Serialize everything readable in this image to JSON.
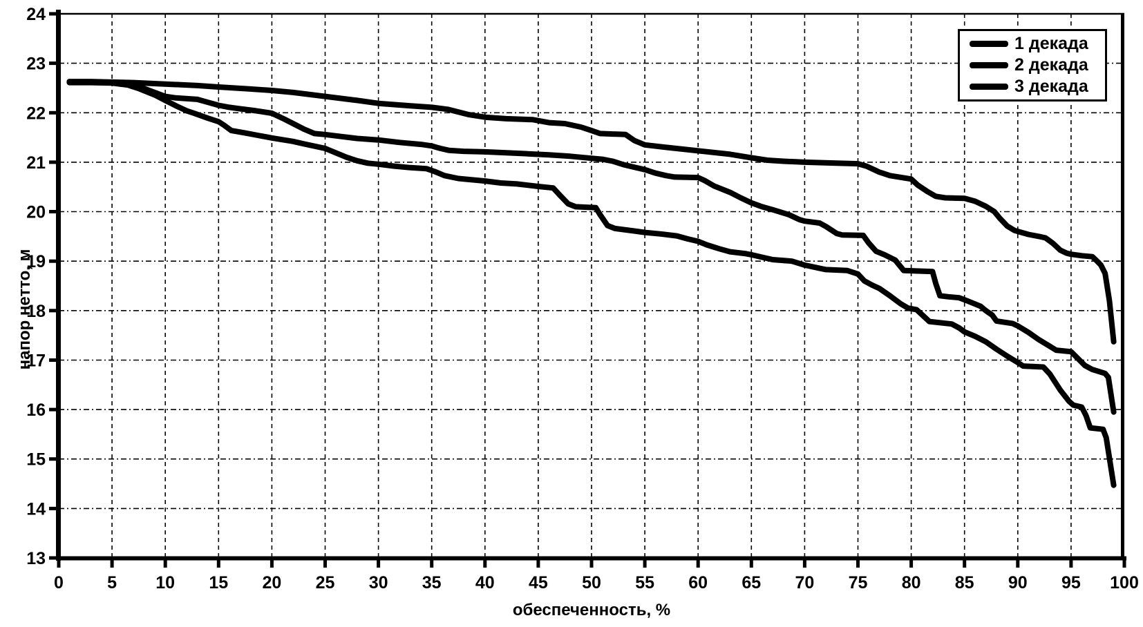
{
  "chart_data": {
    "type": "line",
    "title": "",
    "xlabel": "обеспеченность, %",
    "ylabel": "напор нетто, м",
    "xlim": [
      0,
      100
    ],
    "ylim": [
      13,
      24
    ],
    "x_ticks": [
      0,
      5,
      10,
      15,
      20,
      25,
      30,
      35,
      40,
      45,
      50,
      55,
      60,
      65,
      70,
      75,
      80,
      85,
      90,
      95,
      100
    ],
    "y_ticks": [
      13,
      14,
      15,
      16,
      17,
      18,
      19,
      20,
      21,
      22,
      23,
      24
    ],
    "grid": true,
    "legend_position": "top-right",
    "line_color": "#000000",
    "axis_color": "#000000",
    "background_color": "#ffffff",
    "line_width": 8,
    "series": [
      {
        "name": "1 декада",
        "points": [
          [
            1,
            22.63
          ],
          [
            3,
            22.63
          ],
          [
            5,
            22.62
          ],
          [
            7,
            22.61
          ],
          [
            10,
            22.58
          ],
          [
            13,
            22.55
          ],
          [
            15,
            22.52
          ],
          [
            18,
            22.48
          ],
          [
            20,
            22.45
          ],
          [
            22,
            22.41
          ],
          [
            25,
            22.33
          ],
          [
            28,
            22.25
          ],
          [
            30,
            22.19
          ],
          [
            33,
            22.14
          ],
          [
            35,
            22.11
          ],
          [
            36.5,
            22.07
          ],
          [
            38.5,
            21.96
          ],
          [
            40,
            21.91
          ],
          [
            42,
            21.88
          ],
          [
            44.5,
            21.86
          ],
          [
            46,
            21.8
          ],
          [
            47.5,
            21.78
          ],
          [
            49,
            21.71
          ],
          [
            50,
            21.64
          ],
          [
            50.8,
            21.58
          ],
          [
            53.2,
            21.56
          ],
          [
            54,
            21.44
          ],
          [
            55,
            21.35
          ],
          [
            57,
            21.3
          ],
          [
            60,
            21.23
          ],
          [
            63,
            21.16
          ],
          [
            65,
            21.09
          ],
          [
            66.5,
            21.04
          ],
          [
            68,
            21.02
          ],
          [
            70,
            21.0
          ],
          [
            73,
            20.98
          ],
          [
            75,
            20.97
          ],
          [
            75.8,
            20.92
          ],
          [
            77,
            20.8
          ],
          [
            78,
            20.73
          ],
          [
            80,
            20.66
          ],
          [
            80.6,
            20.54
          ],
          [
            81.5,
            20.41
          ],
          [
            82.3,
            20.31
          ],
          [
            83.2,
            20.28
          ],
          [
            85,
            20.27
          ],
          [
            86,
            20.21
          ],
          [
            87,
            20.11
          ],
          [
            87.8,
            20.0
          ],
          [
            88.3,
            19.87
          ],
          [
            89,
            19.71
          ],
          [
            89.7,
            19.62
          ],
          [
            91,
            19.54
          ],
          [
            92,
            19.5
          ],
          [
            92.6,
            19.47
          ],
          [
            93.3,
            19.36
          ],
          [
            94,
            19.22
          ],
          [
            94.6,
            19.16
          ],
          [
            95,
            19.14
          ],
          [
            96,
            19.11
          ],
          [
            97,
            19.09
          ],
          [
            97.4,
            19.01
          ],
          [
            97.8,
            18.92
          ],
          [
            98.2,
            18.75
          ],
          [
            98.6,
            18.2
          ],
          [
            99,
            17.37
          ]
        ]
      },
      {
        "name": "2 декада",
        "points": [
          [
            1,
            22.62
          ],
          [
            3,
            22.62
          ],
          [
            5,
            22.61
          ],
          [
            6.5,
            22.59
          ],
          [
            7.5,
            22.53
          ],
          [
            8.5,
            22.45
          ],
          [
            10,
            22.33
          ],
          [
            11,
            22.3
          ],
          [
            13,
            22.27
          ],
          [
            14,
            22.21
          ],
          [
            15,
            22.15
          ],
          [
            16,
            22.11
          ],
          [
            17,
            22.08
          ],
          [
            18.5,
            22.04
          ],
          [
            20,
            21.99
          ],
          [
            21,
            21.89
          ],
          [
            22,
            21.78
          ],
          [
            23,
            21.67
          ],
          [
            24,
            21.58
          ],
          [
            25,
            21.56
          ],
          [
            26.5,
            21.52
          ],
          [
            28,
            21.48
          ],
          [
            30,
            21.45
          ],
          [
            32,
            21.4
          ],
          [
            34,
            21.36
          ],
          [
            35,
            21.33
          ],
          [
            35.8,
            21.28
          ],
          [
            36.6,
            21.24
          ],
          [
            38,
            21.22
          ],
          [
            40,
            21.21
          ],
          [
            42,
            21.19
          ],
          [
            44,
            21.17
          ],
          [
            46,
            21.15
          ],
          [
            48,
            21.12
          ],
          [
            50,
            21.08
          ],
          [
            51,
            21.06
          ],
          [
            52,
            21.02
          ],
          [
            53,
            20.95
          ],
          [
            54,
            20.9
          ],
          [
            55,
            20.85
          ],
          [
            56,
            20.78
          ],
          [
            57,
            20.73
          ],
          [
            57.8,
            20.7
          ],
          [
            60,
            20.69
          ],
          [
            60.6,
            20.63
          ],
          [
            61.5,
            20.52
          ],
          [
            63,
            20.39
          ],
          [
            64,
            20.28
          ],
          [
            65,
            20.18
          ],
          [
            66,
            20.1
          ],
          [
            67,
            20.04
          ],
          [
            68.5,
            19.94
          ],
          [
            69.5,
            19.84
          ],
          [
            70,
            19.81
          ],
          [
            71.4,
            19.77
          ],
          [
            72,
            19.7
          ],
          [
            73,
            19.56
          ],
          [
            73.5,
            19.53
          ],
          [
            75.5,
            19.52
          ],
          [
            76,
            19.37
          ],
          [
            76.7,
            19.2
          ],
          [
            77.5,
            19.13
          ],
          [
            78.5,
            19.02
          ],
          [
            79.3,
            18.81
          ],
          [
            82,
            18.79
          ],
          [
            82.3,
            18.55
          ],
          [
            82.7,
            18.3
          ],
          [
            83.5,
            18.28
          ],
          [
            84.5,
            18.26
          ],
          [
            85,
            18.22
          ],
          [
            86.5,
            18.09
          ],
          [
            87,
            18.0
          ],
          [
            87.6,
            17.91
          ],
          [
            88,
            17.79
          ],
          [
            89.5,
            17.74
          ],
          [
            90,
            17.69
          ],
          [
            91,
            17.56
          ],
          [
            92,
            17.41
          ],
          [
            93,
            17.28
          ],
          [
            93.6,
            17.2
          ],
          [
            95,
            17.17
          ],
          [
            95.6,
            17.04
          ],
          [
            96.3,
            16.89
          ],
          [
            97,
            16.81
          ],
          [
            98.2,
            16.73
          ],
          [
            98.5,
            16.65
          ],
          [
            99,
            15.95
          ]
        ]
      },
      {
        "name": "3 декада",
        "points": [
          [
            1,
            22.61
          ],
          [
            3,
            22.61
          ],
          [
            5,
            22.6
          ],
          [
            6.5,
            22.56
          ],
          [
            7.5,
            22.49
          ],
          [
            9,
            22.36
          ],
          [
            10,
            22.25
          ],
          [
            11,
            22.14
          ],
          [
            12,
            22.04
          ],
          [
            12.7,
            21.99
          ],
          [
            14,
            21.89
          ],
          [
            15,
            21.82
          ],
          [
            15.5,
            21.75
          ],
          [
            16.2,
            21.64
          ],
          [
            17.5,
            21.59
          ],
          [
            18.5,
            21.55
          ],
          [
            20,
            21.49
          ],
          [
            22,
            21.42
          ],
          [
            23,
            21.37
          ],
          [
            25,
            21.28
          ],
          [
            26,
            21.19
          ],
          [
            27,
            21.1
          ],
          [
            28,
            21.03
          ],
          [
            29,
            20.98
          ],
          [
            30,
            20.96
          ],
          [
            31.5,
            20.92
          ],
          [
            33,
            20.89
          ],
          [
            34.5,
            20.87
          ],
          [
            35.3,
            20.81
          ],
          [
            36.2,
            20.73
          ],
          [
            37.5,
            20.67
          ],
          [
            40,
            20.62
          ],
          [
            41.5,
            20.58
          ],
          [
            43,
            20.56
          ],
          [
            45,
            20.51
          ],
          [
            46.4,
            20.48
          ],
          [
            47,
            20.34
          ],
          [
            47.8,
            20.16
          ],
          [
            48.5,
            20.1
          ],
          [
            50.4,
            20.08
          ],
          [
            50.8,
            19.94
          ],
          [
            51.5,
            19.72
          ],
          [
            52.2,
            19.66
          ],
          [
            54,
            19.61
          ],
          [
            55,
            19.58
          ],
          [
            56.5,
            19.55
          ],
          [
            58,
            19.51
          ],
          [
            59,
            19.45
          ],
          [
            60,
            19.4
          ],
          [
            60.8,
            19.33
          ],
          [
            62,
            19.25
          ],
          [
            63,
            19.19
          ],
          [
            64.5,
            19.15
          ],
          [
            65,
            19.13
          ],
          [
            66,
            19.08
          ],
          [
            67,
            19.03
          ],
          [
            68.8,
            19.0
          ],
          [
            70,
            18.92
          ],
          [
            71.3,
            18.86
          ],
          [
            72,
            18.83
          ],
          [
            74,
            18.81
          ],
          [
            75,
            18.74
          ],
          [
            75.6,
            18.6
          ],
          [
            76.3,
            18.52
          ],
          [
            77,
            18.45
          ],
          [
            78,
            18.3
          ],
          [
            79,
            18.14
          ],
          [
            79.7,
            18.05
          ],
          [
            80.5,
            18.02
          ],
          [
            81,
            17.92
          ],
          [
            81.7,
            17.78
          ],
          [
            83.8,
            17.73
          ],
          [
            84.5,
            17.65
          ],
          [
            85,
            17.57
          ],
          [
            86,
            17.48
          ],
          [
            87,
            17.37
          ],
          [
            88,
            17.22
          ],
          [
            89,
            17.08
          ],
          [
            90,
            16.95
          ],
          [
            90.5,
            16.88
          ],
          [
            92.4,
            16.86
          ],
          [
            93,
            16.72
          ],
          [
            94,
            16.39
          ],
          [
            94.8,
            16.17
          ],
          [
            95.2,
            16.09
          ],
          [
            96,
            16.05
          ],
          [
            96.4,
            15.88
          ],
          [
            96.8,
            15.63
          ],
          [
            98,
            15.6
          ],
          [
            98.3,
            15.43
          ],
          [
            99,
            14.47
          ]
        ]
      }
    ]
  },
  "legend": {
    "items": [
      "1 декада",
      "2 декада",
      "3 декада"
    ]
  }
}
